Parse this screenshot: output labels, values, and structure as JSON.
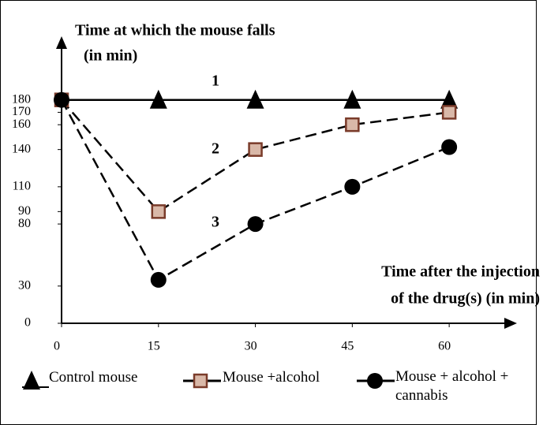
{
  "chart_data": {
    "type": "line",
    "ylabel": [
      "Time at which the mouse falls",
      "(in min)"
    ],
    "xlabel": [
      "Time after the injection",
      "of the drug(s) (in min)"
    ],
    "x": [
      0,
      15,
      30,
      45,
      60
    ],
    "xlim": [
      0,
      70
    ],
    "xticks": [
      0,
      15,
      30,
      45,
      60
    ],
    "ylim": [
      0,
      230
    ],
    "yticks": [
      0,
      30,
      80,
      90,
      110,
      140,
      160,
      170,
      180
    ],
    "series": [
      {
        "name": "Control mouse",
        "color": "#000000",
        "linestyle": "solid",
        "marker": "triangle",
        "values": [
          180,
          180,
          180,
          180,
          180
        ]
      },
      {
        "name": "Mouse +alcohol",
        "color": "#000000",
        "linestyle": "dashed",
        "marker": "square",
        "values": [
          180,
          90,
          140,
          160,
          170
        ]
      },
      {
        "name": "Mouse + alcohol + cannabis",
        "color": "#000000",
        "linestyle": "dashed",
        "marker": "circle",
        "values": [
          180,
          35,
          80,
          110,
          142
        ]
      }
    ],
    "annotations": [
      "1",
      "2",
      "3"
    ]
  }
}
